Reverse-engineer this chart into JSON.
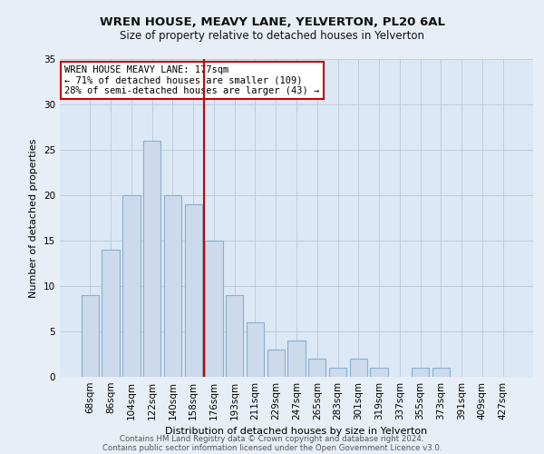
{
  "title": "WREN HOUSE, MEAVY LANE, YELVERTON, PL20 6AL",
  "subtitle": "Size of property relative to detached houses in Yelverton",
  "xlabel": "Distribution of detached houses by size in Yelverton",
  "ylabel": "Number of detached properties",
  "bar_labels": [
    "68sqm",
    "86sqm",
    "104sqm",
    "122sqm",
    "140sqm",
    "158sqm",
    "176sqm",
    "193sqm",
    "211sqm",
    "229sqm",
    "247sqm",
    "265sqm",
    "283sqm",
    "301sqm",
    "319sqm",
    "337sqm",
    "355sqm",
    "373sqm",
    "391sqm",
    "409sqm",
    "427sqm"
  ],
  "bar_values": [
    9,
    14,
    20,
    26,
    20,
    19,
    15,
    9,
    6,
    3,
    4,
    2,
    1,
    2,
    1,
    0,
    1,
    1,
    0,
    0,
    0
  ],
  "bar_color": "#ccdaeb",
  "bar_edgecolor": "#89afd0",
  "vline_color": "#cc0000",
  "annotation_title": "WREN HOUSE MEAVY LANE: 177sqm",
  "annotation_line1": "← 71% of detached houses are smaller (109)",
  "annotation_line2": "28% of semi-detached houses are larger (43) →",
  "annotation_box_edgecolor": "#cc0000",
  "ylim": [
    0,
    35
  ],
  "yticks": [
    0,
    5,
    10,
    15,
    20,
    25,
    30,
    35
  ],
  "footer_line1": "Contains HM Land Registry data © Crown copyright and database right 2024.",
  "footer_line2": "Contains public sector information licensed under the Open Government Licence v3.0.",
  "bg_color": "#e8eef5",
  "plot_bg_color": "#dce8f5"
}
